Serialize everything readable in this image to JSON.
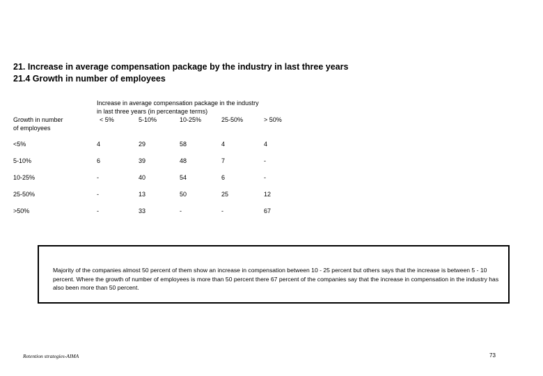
{
  "heading": {
    "line1": "21. Increase in average compensation package by the industry in last three years",
    "line2": "21.4 Growth in number of employees"
  },
  "table": {
    "row_header": {
      "line1": "Growth in number",
      "line2": "of employees"
    },
    "column_caption": {
      "line1": "Increase in average compensation package in the industry",
      "line2": "in last three years (in percentage terms)"
    },
    "columns": [
      "< 5%",
      "5-10%",
      "10-25%",
      "25-50%",
      "> 50%"
    ],
    "rows": [
      {
        "label": "<5%",
        "values": [
          "4",
          "29",
          "58",
          "4",
          "4"
        ]
      },
      {
        "label": "5-10%",
        "values": [
          "6",
          "39",
          "48",
          "7",
          "-"
        ]
      },
      {
        "label": "10-25%",
        "values": [
          "-",
          "40",
          "54",
          "6",
          "-"
        ]
      },
      {
        "label": "25-50%",
        "values": [
          "-",
          "13",
          "50",
          "25",
          "12"
        ]
      },
      {
        "label": ">50%",
        "values": [
          "-",
          "33",
          "-",
          "-",
          "67"
        ]
      }
    ]
  },
  "note": "Majority of the companies almost 50 percent of them show an increase in compensation between 10 - 25 percent but others says that the increase is between 5 - 10 percent. Where the growth of number of employees is more than 50 percent there 67 percent of the companies say that the increase in compensation in the industry has also been more than 50 percent.",
  "footer": {
    "source": "Retention strategies-AIMA",
    "page_number": "73"
  }
}
